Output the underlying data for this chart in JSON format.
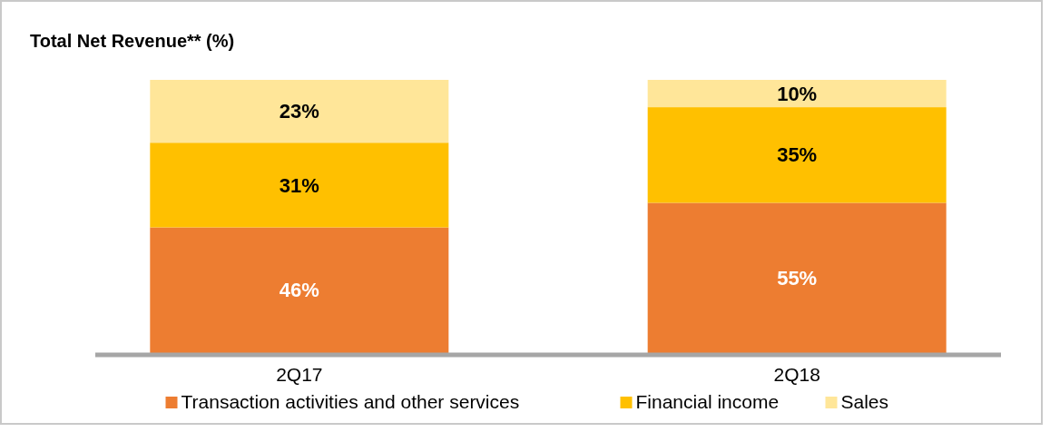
{
  "chart_data": {
    "type": "bar",
    "title": "Total Net Revenue** (%)",
    "categories": [
      "2Q17",
      "2Q18"
    ],
    "stacked": true,
    "legend": "bottom",
    "series": [
      {
        "name": "Transaction activities and other services",
        "color": "#ed7d31",
        "values": [
          46,
          55
        ],
        "value_labels": [
          "46%",
          "55%"
        ]
      },
      {
        "name": "Financial income",
        "color": "#ffc000",
        "values": [
          31,
          35
        ],
        "value_labels": [
          "31%",
          "35%"
        ]
      },
      {
        "name": "Sales",
        "color": "#ffe699",
        "values": [
          23,
          10
        ],
        "value_labels": [
          "23%",
          "10%"
        ]
      }
    ]
  }
}
